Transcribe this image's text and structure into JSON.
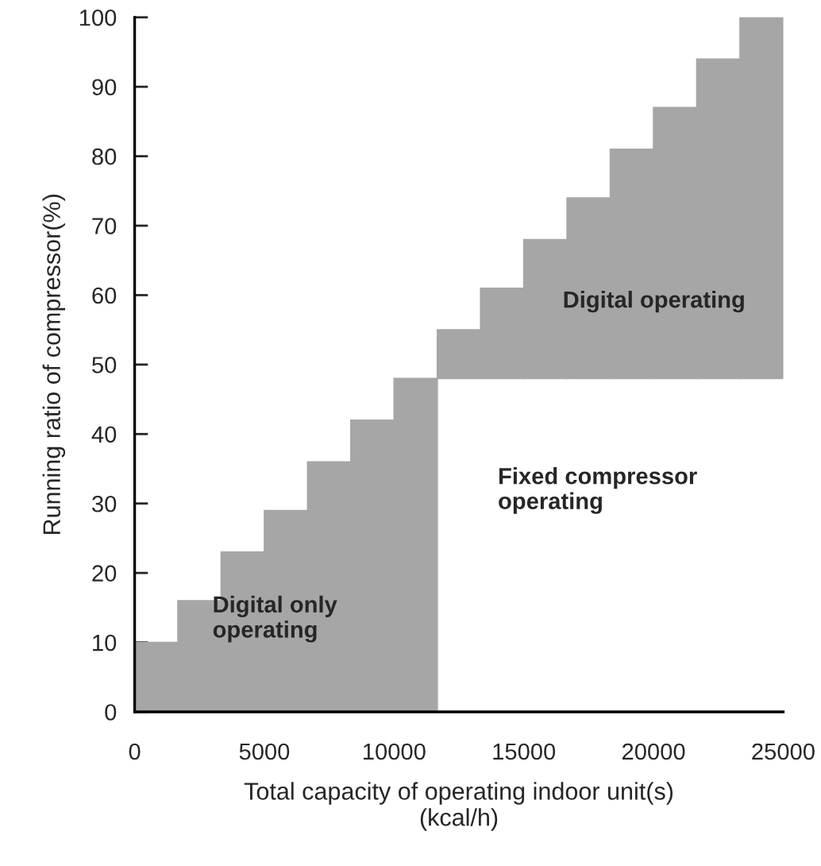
{
  "chart_data": {
    "type": "bar",
    "xlabel": "Total capacity of operating indoor unit(s)\n(kcal/h)",
    "ylabel": "Running ratio of compressor(%)",
    "x": [
      833.3,
      2500,
      4166.7,
      5833.3,
      7500,
      9166.7,
      10833.3,
      12500,
      14166.7,
      15833.3,
      17500,
      19166.7,
      20833.3,
      22500,
      24166.7
    ],
    "base": [
      0,
      0,
      0,
      0,
      0,
      0,
      0,
      48,
      48,
      48,
      48,
      48,
      48,
      48,
      48
    ],
    "values": [
      10,
      16,
      23,
      29,
      36,
      42,
      48,
      7,
      13,
      20,
      26,
      33,
      39,
      46,
      52
    ],
    "color": "#a6a6a6",
    "xlim": [
      0,
      25000
    ],
    "xticks": [
      0,
      5000,
      10000,
      15000,
      20000,
      25000
    ],
    "ylim": [
      0,
      100
    ],
    "yticks": [
      0,
      10,
      20,
      30,
      40,
      50,
      60,
      70,
      80,
      90,
      100
    ],
    "annotations": [
      "Digital operating",
      "Fixed compressor\noperating",
      "Digital only\noperating"
    ],
    "grid": false,
    "legend": false
  }
}
